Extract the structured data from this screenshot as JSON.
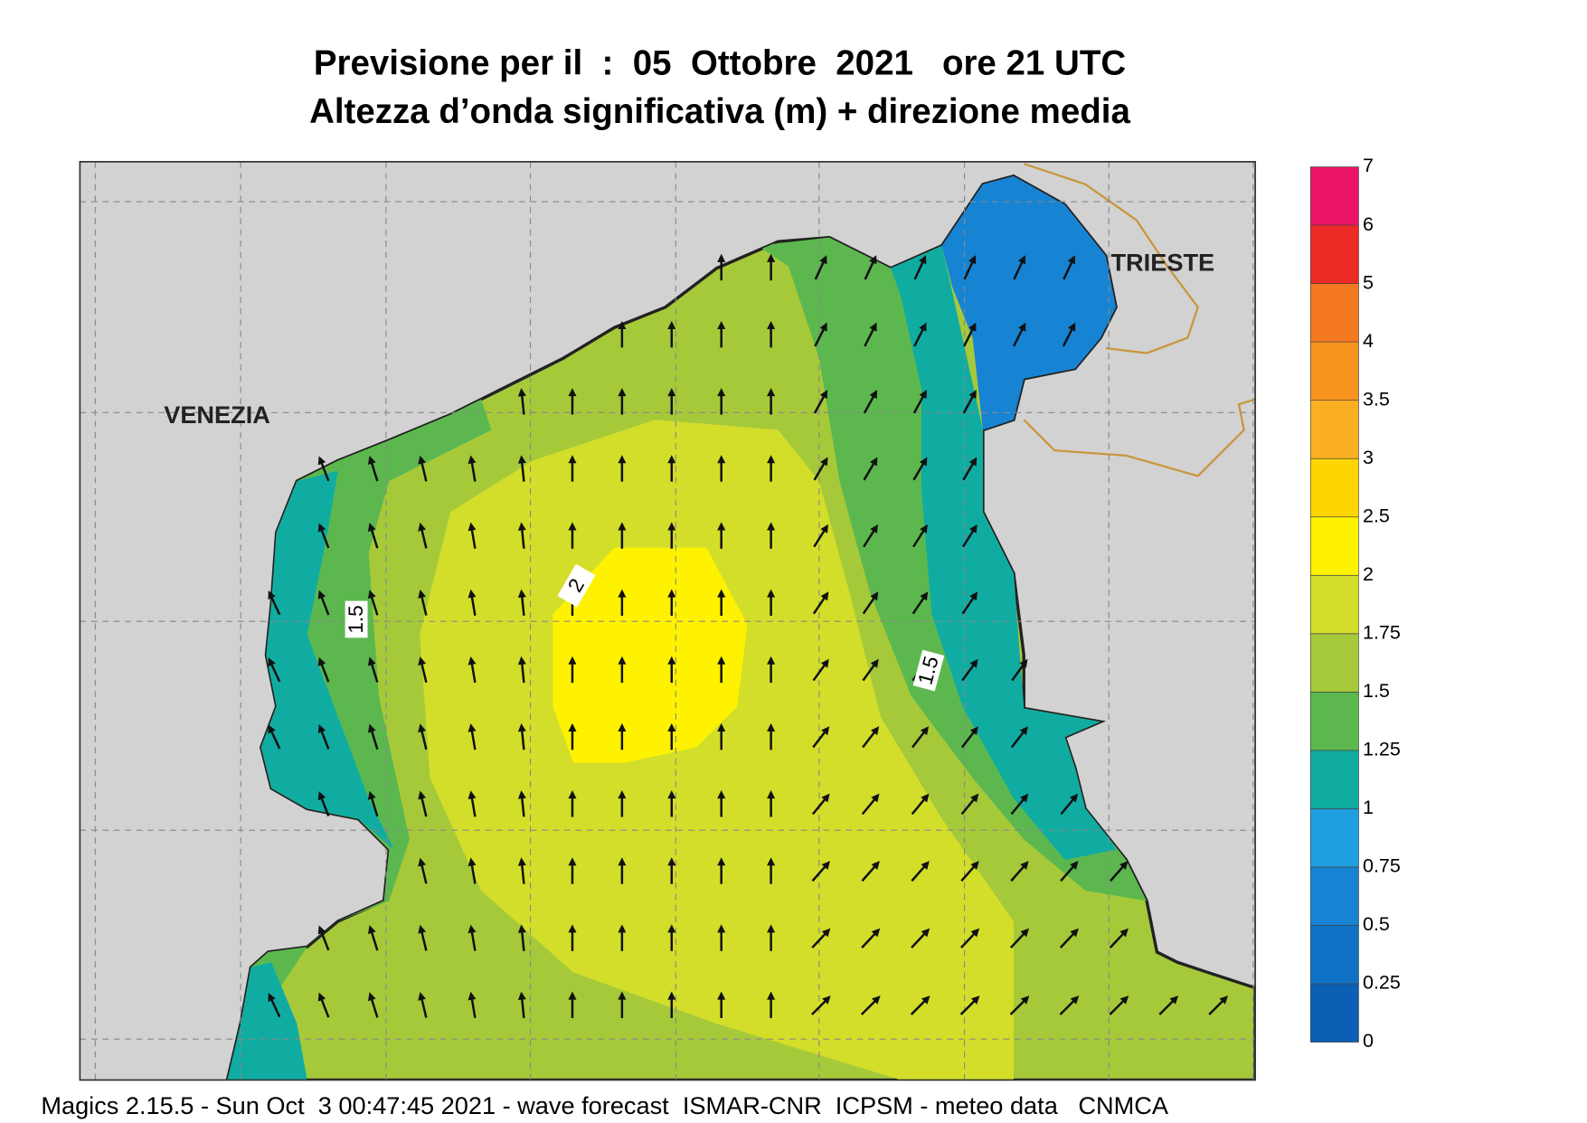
{
  "header": {
    "title_line1": "Previsione per il  :  05  Ottobre  2021   ore 21 UTC",
    "title_line2": "Altezza d’onda significativa (m) + direzione media"
  },
  "map": {
    "places": [
      "VENEZIA",
      "TRIESTE"
    ],
    "contour_labels": [
      "1.5",
      "2",
      "1.5"
    ]
  },
  "colorbar": {
    "levels": [
      0,
      0.25,
      0.5,
      0.75,
      1,
      1.25,
      1.5,
      1.75,
      2,
      2.5,
      3,
      3.5,
      4,
      5,
      6,
      7
    ],
    "colors": [
      "#0b5fb5",
      "#0f72c6",
      "#1784d3",
      "#1d9fe0",
      "#10aca2",
      "#5cb84e",
      "#a6c93a",
      "#d3de2a",
      "#fff200",
      "#ffd500",
      "#fbb023",
      "#f7941d",
      "#f47721",
      "#ec2a26",
      "#eb1465"
    ]
  },
  "footer": "Magics 2.15.5 - Sun Oct  3 00:47:45 2021 - wave forecast  ISMAR-CNR  ICPSM - meteo data   CNMCA"
}
